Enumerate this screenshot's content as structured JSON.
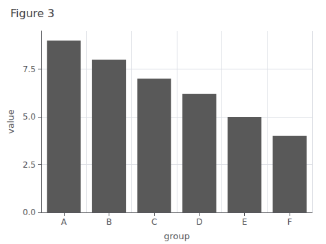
{
  "chart_data": {
    "type": "bar",
    "title": "Figure 3",
    "xlabel": "group",
    "ylabel": "value",
    "categories": [
      "A",
      "B",
      "C",
      "D",
      "E",
      "F"
    ],
    "values": [
      9.0,
      8.0,
      7.0,
      6.2,
      5.0,
      4.0
    ],
    "color": "#595959",
    "ylim": [
      0,
      9.5
    ],
    "yticks": [
      {
        "value": 0,
        "label": "0.0"
      },
      2.5,
      {
        "value": 5,
        "label": "5.0"
      },
      7.5
    ],
    "grid": true
  }
}
